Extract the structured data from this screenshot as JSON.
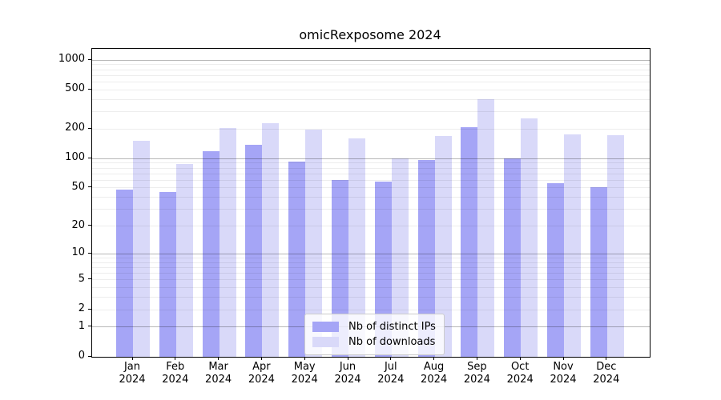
{
  "title": "omicRexposome 2024",
  "legend": {
    "entries": [
      {
        "label": "Nb of distinct IPs",
        "color": "#a5a5f6"
      },
      {
        "label": "Nb of downloads",
        "color": "#d9d9f9"
      }
    ]
  },
  "chart_data": {
    "type": "bar",
    "title": "omicRexposome 2024",
    "year": "2024",
    "categories": [
      "Jan",
      "Feb",
      "Mar",
      "Apr",
      "May",
      "Jun",
      "Jul",
      "Aug",
      "Sep",
      "Oct",
      "Nov",
      "Dec"
    ],
    "series": [
      {
        "name": "Nb of distinct IPs",
        "color": "#a5a5f6",
        "values": [
          48,
          45,
          120,
          138,
          94,
          60,
          58,
          96,
          210,
          100,
          56,
          51
        ]
      },
      {
        "name": "Nb of downloads",
        "color": "#d9d9f9",
        "values": [
          152,
          88,
          206,
          230,
          198,
          160,
          101,
          170,
          405,
          257,
          177,
          174
        ]
      }
    ],
    "yticks": [
      0,
      1,
      2,
      5,
      10,
      20,
      50,
      100,
      200,
      500,
      1000
    ],
    "ylim": [
      0,
      1300
    ],
    "yscale": "log10(value+1)",
    "xlabel": "",
    "ylabel": "",
    "grid": true,
    "legend_position": "lower center inside plot"
  }
}
